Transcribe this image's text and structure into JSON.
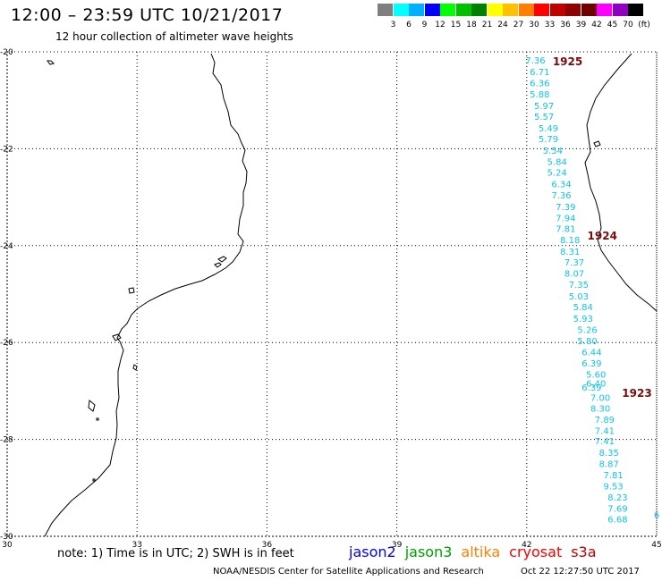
{
  "header": {
    "title": "12:00 – 23:59 UTC 10/21/2017",
    "subtitle": "12 hour collection of altimeter wave heights"
  },
  "scale": {
    "unit": "(ft)",
    "colors": [
      "#7f7f7f",
      "#00ffff",
      "#00b0ff",
      "#0000ff",
      "#00ff00",
      "#00c000",
      "#008000",
      "#ffff00",
      "#ffc000",
      "#ff8000",
      "#ff0000",
      "#c00000",
      "#900000",
      "#700000",
      "#ff00ff",
      "#9000c0",
      "#000000"
    ],
    "labels": [
      "3",
      "6",
      "9",
      "12",
      "15",
      "18",
      "21",
      "24",
      "27",
      "30",
      "33",
      "36",
      "39",
      "42",
      "45",
      "70"
    ]
  },
  "map": {
    "lat_labels": [
      "-20",
      "-22",
      "-24",
      "-26",
      "-28",
      "-30"
    ],
    "lon_labels": [
      "30",
      "33",
      "36",
      "39",
      "42",
      "45"
    ],
    "lat_range": [
      -30,
      -20
    ],
    "lon_range": [
      30,
      45
    ]
  },
  "orbits": [
    {
      "label": "1925",
      "lon": 42.6,
      "lat": -20.2
    },
    {
      "label": "1924",
      "lon": 43.4,
      "lat": -23.8
    },
    {
      "label": "1923",
      "lon": 44.2,
      "lat": -27.05
    }
  ],
  "observations": [
    {
      "v": "7.36",
      "lon": 42.2,
      "lat": -20.17
    },
    {
      "v": "6.71",
      "lon": 42.3,
      "lat": -20.41
    },
    {
      "v": "6.36",
      "lon": 42.3,
      "lat": -20.64
    },
    {
      "v": "5.88",
      "lon": 42.3,
      "lat": -20.87
    },
    {
      "v": "5.97",
      "lon": 42.4,
      "lat": -21.11
    },
    {
      "v": "5.57",
      "lon": 42.4,
      "lat": -21.33
    },
    {
      "v": "5.49",
      "lon": 42.5,
      "lat": -21.57
    },
    {
      "v": "5.79",
      "lon": 42.5,
      "lat": -21.79
    },
    {
      "v": "5.54",
      "lon": 42.6,
      "lat": -22.03
    },
    {
      "v": "5.84",
      "lon": 42.7,
      "lat": -22.26
    },
    {
      "v": "5.24",
      "lon": 42.7,
      "lat": -22.48
    },
    {
      "v": "6.34",
      "lon": 42.8,
      "lat": -22.72
    },
    {
      "v": "7.36",
      "lon": 42.8,
      "lat": -22.95
    },
    {
      "v": "7.39",
      "lon": 42.9,
      "lat": -23.19
    },
    {
      "v": "7.94",
      "lon": 42.9,
      "lat": -23.42
    },
    {
      "v": "7.81",
      "lon": 42.9,
      "lat": -23.64
    },
    {
      "v": "8.18",
      "lon": 43.0,
      "lat": -23.87
    },
    {
      "v": "8.31",
      "lon": 43.0,
      "lat": -24.11
    },
    {
      "v": "7.37",
      "lon": 43.1,
      "lat": -24.34
    },
    {
      "v": "8.07",
      "lon": 43.1,
      "lat": -24.57
    },
    {
      "v": "7.35",
      "lon": 43.2,
      "lat": -24.8
    },
    {
      "v": "5.03",
      "lon": 43.2,
      "lat": -25.04
    },
    {
      "v": "5.84",
      "lon": 43.3,
      "lat": -25.26
    },
    {
      "v": "5.93",
      "lon": 43.3,
      "lat": -25.5
    },
    {
      "v": "5.26",
      "lon": 43.4,
      "lat": -25.73
    },
    {
      "v": "5.80",
      "lon": 43.4,
      "lat": -25.96
    },
    {
      "v": "6.44",
      "lon": 43.5,
      "lat": -26.19
    },
    {
      "v": "6.39",
      "lon": 43.5,
      "lat": -26.42
    },
    {
      "v": "5.60",
      "lon": 43.6,
      "lat": -26.65
    },
    {
      "v": "6.40",
      "lon": 43.6,
      "lat": -26.84
    },
    {
      "v": "6.39",
      "lon": 43.5,
      "lat": -26.92
    },
    {
      "v": "7.00",
      "lon": 43.7,
      "lat": -27.13
    },
    {
      "v": "8.30",
      "lon": 43.7,
      "lat": -27.35
    },
    {
      "v": "7.89",
      "lon": 43.8,
      "lat": -27.58
    },
    {
      "v": "7.41",
      "lon": 43.8,
      "lat": -27.81
    },
    {
      "v": "7.41",
      "lon": 43.8,
      "lat": -28.03
    },
    {
      "v": "8.35",
      "lon": 43.9,
      "lat": -28.27
    },
    {
      "v": "8.87",
      "lon": 43.9,
      "lat": -28.5
    },
    {
      "v": "7.81",
      "lon": 44.0,
      "lat": -28.73
    },
    {
      "v": "9.53",
      "lon": 44.0,
      "lat": -28.96
    },
    {
      "v": "8.23",
      "lon": 44.1,
      "lat": -29.19
    },
    {
      "v": "7.69",
      "lon": 44.1,
      "lat": -29.42
    },
    {
      "v": "6.68",
      "lon": 44.1,
      "lat": -29.64
    },
    {
      "v": "6",
      "lon": 45.0,
      "lat": -29.55
    }
  ],
  "footer": {
    "note": "note: 1) Time is in UTC; 2) SWH is in feet",
    "legend": [
      {
        "name": "jason2",
        "color": "#0000ff"
      },
      {
        "name": "jason3",
        "color": "#00a000"
      },
      {
        "name": "altika",
        "color": "#ff8000"
      },
      {
        "name": "cryosat",
        "color": "#ff0000"
      },
      {
        "name": "s3a",
        "color": "#c00000"
      }
    ],
    "credit": "NOAA/NESDIS Center for Satellite Applications and Research",
    "timestamp": "Oct 22 12:27:50 UTC 2017"
  }
}
